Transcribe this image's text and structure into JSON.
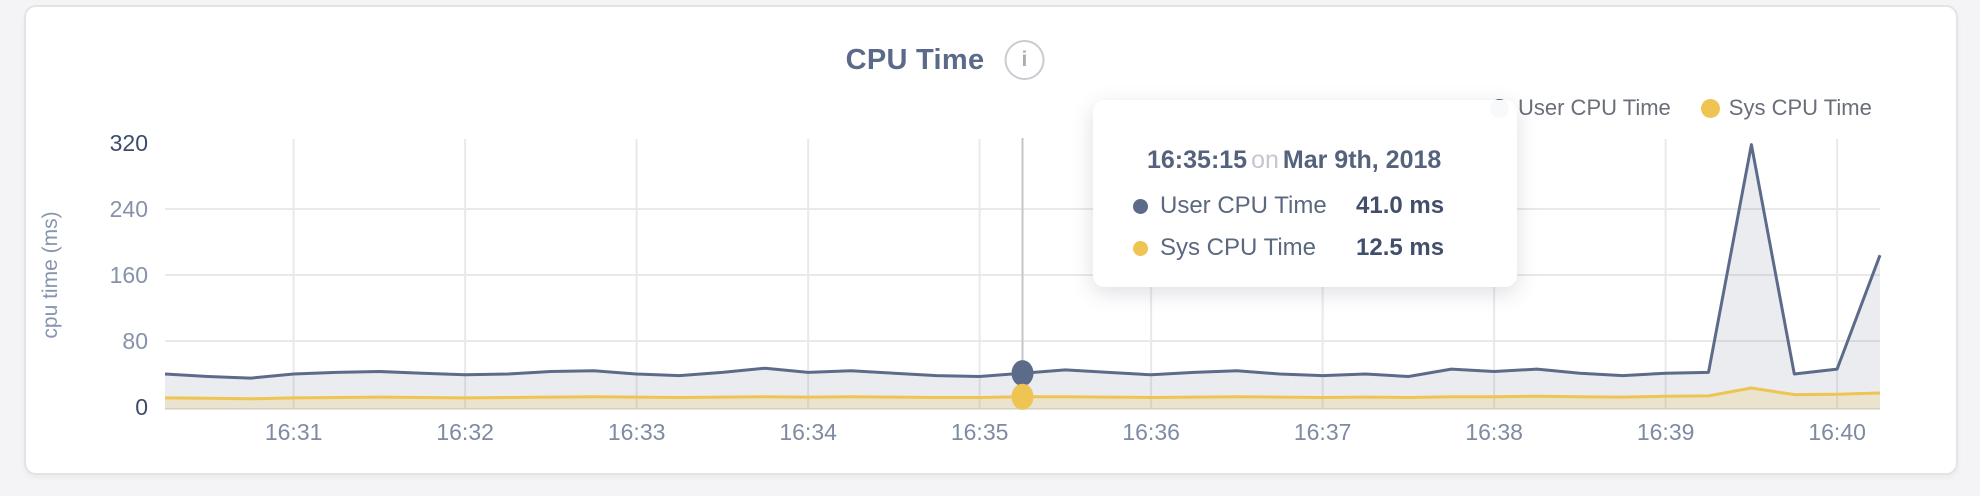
{
  "chart": {
    "title": "CPU Time",
    "info_icon": "i",
    "y_axis": {
      "label": "cpu time (ms)",
      "ticks": [
        0,
        80,
        160,
        240,
        320
      ]
    },
    "x_axis": {
      "tick_labels": [
        "16:31",
        "16:32",
        "16:33",
        "16:34",
        "16:35",
        "16:36",
        "16:37",
        "16:38",
        "16:39",
        "16:40"
      ]
    },
    "legend": [
      {
        "name": "User CPU Time",
        "color": "#5d6b8a"
      },
      {
        "name": "Sys CPU Time",
        "color": "#eec453"
      }
    ],
    "colors": {
      "gridline": "#e9e9eb",
      "axis_line": "#e4e4e6",
      "crosshair": "#c6c6c8",
      "tick_dark": "#3d4c69",
      "tick_light": "#8592a9",
      "x_tick": "#7e8ba2",
      "y_title": "#8795ae"
    }
  },
  "tooltip": {
    "time": "16:35:15",
    "conjunction": "on",
    "date": "Mar 9th, 2018",
    "rows": [
      {
        "label": "User CPU Time",
        "value": "41.0 ms",
        "color": "#5d6b8a"
      },
      {
        "label": "Sys CPU Time",
        "value": "12.5 ms",
        "color": "#eec453"
      }
    ]
  },
  "chart_data": {
    "type": "area",
    "title": "CPU Time",
    "xlabel": "",
    "ylabel": "cpu time (ms)",
    "ylim": [
      0,
      320
    ],
    "x_range": [
      "16:30:15",
      "16:40:15"
    ],
    "grid": true,
    "legend_position": "top-right",
    "x": [
      "16:30:15",
      "16:30:30",
      "16:30:45",
      "16:31:00",
      "16:31:15",
      "16:31:30",
      "16:31:45",
      "16:32:00",
      "16:32:15",
      "16:32:30",
      "16:32:45",
      "16:33:00",
      "16:33:15",
      "16:33:30",
      "16:33:45",
      "16:34:00",
      "16:34:15",
      "16:34:30",
      "16:34:45",
      "16:35:00",
      "16:35:15",
      "16:35:30",
      "16:35:45",
      "16:36:00",
      "16:36:15",
      "16:36:30",
      "16:36:45",
      "16:37:00",
      "16:37:15",
      "16:37:30",
      "16:37:45",
      "16:38:00",
      "16:38:15",
      "16:38:30",
      "16:38:45",
      "16:39:00",
      "16:39:15",
      "16:39:30",
      "16:39:45",
      "16:40:00",
      "16:40:15"
    ],
    "series": [
      {
        "name": "User CPU Time",
        "color": "#5d6b8a",
        "fill": "rgba(97,111,141,0.13)",
        "values": [
          40,
          37,
          35,
          40,
          42,
          43,
          41,
          39,
          40,
          43,
          44,
          40,
          38,
          42,
          47,
          42,
          44,
          41,
          38,
          37,
          41,
          45,
          42,
          39,
          42,
          44,
          40,
          38,
          40,
          37,
          46,
          43,
          46,
          41,
          38,
          41,
          42,
          318,
          40,
          46,
          184
        ]
      },
      {
        "name": "Sys CPU Time",
        "color": "#eec453",
        "fill": "rgba(233,195,80,0.22)",
        "values": [
          11,
          10.5,
          10,
          11,
          11.5,
          12,
          11.5,
          11,
          11.5,
          12,
          12.5,
          12,
          11.5,
          12,
          12.5,
          12,
          12.5,
          12,
          11.5,
          11.5,
          12.5,
          12.5,
          12,
          11.5,
          12,
          12.5,
          12,
          11.5,
          12,
          11.5,
          12.5,
          12.5,
          13,
          12.5,
          12,
          13,
          13.5,
          23,
          15,
          15.5,
          17
        ]
      }
    ],
    "highlight": {
      "x": "16:35:15",
      "values": [
        41.0,
        12.5
      ]
    }
  }
}
